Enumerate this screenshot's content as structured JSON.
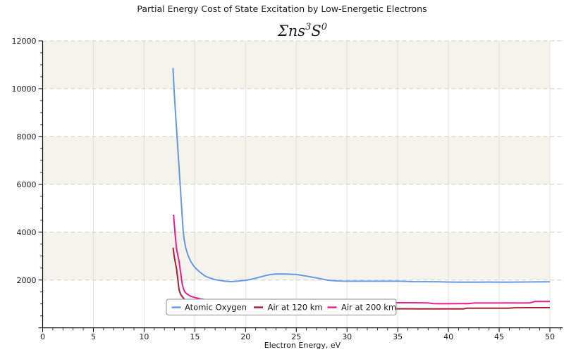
{
  "chart_data": {
    "type": "line",
    "title": "Partial Energy Cost of State Excitation by Low-Energetic Electrons",
    "subtitle_parts": [
      {
        "text": "Σns",
        "sup": false
      },
      {
        "text": "3",
        "sup": true
      },
      {
        "text": "S",
        "sup": false
      },
      {
        "text": "0",
        "sup": true
      }
    ],
    "subtitle_plain": "Σns³S⁰",
    "xlabel": "Electron Energy, eV",
    "ylabel": "",
    "xlim": [
      0,
      51.25
    ],
    "ylim": [
      0,
      12000
    ],
    "x_ticks_major": [
      0,
      5,
      10,
      15,
      20,
      25,
      30,
      35,
      40,
      45,
      50
    ],
    "x_minor_step": 1,
    "y_ticks_major": [
      2000,
      4000,
      6000,
      8000,
      10000,
      12000
    ],
    "y_minor_step": 500,
    "grid": {
      "vertical_style": "solid",
      "horizontal_style": "dashed",
      "vertical_color": "#e0e0e0",
      "horizontal_color": "#cfcfcf"
    },
    "background_bands": {
      "band_height": 2000,
      "colors": [
        "#ffffff",
        "#f4f4ec"
      ]
    },
    "legend": {
      "position": "lower center",
      "border_color": "#8c8c8c",
      "entries": [
        "Atomic Oxygen",
        "Air at 120 km",
        "Air at 200 km"
      ]
    },
    "series": [
      {
        "name": "Atomic Oxygen",
        "color": "#6897e6",
        "points": [
          [
            12.85,
            10870
          ],
          [
            12.95,
            9950
          ],
          [
            13.1,
            8950
          ],
          [
            13.25,
            7970
          ],
          [
            13.4,
            6990
          ],
          [
            13.55,
            6010
          ],
          [
            13.7,
            5030
          ],
          [
            13.85,
            4050
          ],
          [
            13.95,
            3700
          ],
          [
            14.1,
            3350
          ],
          [
            14.3,
            3060
          ],
          [
            14.6,
            2770
          ],
          [
            14.9,
            2580
          ],
          [
            15.2,
            2440
          ],
          [
            15.5,
            2330
          ],
          [
            16,
            2170
          ],
          [
            16.5,
            2080
          ],
          [
            17,
            2015
          ],
          [
            17.5,
            1980
          ],
          [
            18,
            1950
          ],
          [
            18.5,
            1935
          ],
          [
            19,
            1945
          ],
          [
            19.5,
            1965
          ],
          [
            20,
            1990
          ],
          [
            20.5,
            2025
          ],
          [
            21,
            2075
          ],
          [
            21.5,
            2135
          ],
          [
            22,
            2190
          ],
          [
            22.5,
            2230
          ],
          [
            23,
            2250
          ],
          [
            23.5,
            2255
          ],
          [
            24,
            2252
          ],
          [
            24.5,
            2240
          ],
          [
            25,
            2230
          ],
          [
            25.5,
            2200
          ],
          [
            26,
            2162
          ],
          [
            26.5,
            2125
          ],
          [
            27,
            2088
          ],
          [
            27.5,
            2045
          ],
          [
            28,
            2002
          ],
          [
            28.5,
            1978
          ],
          [
            29,
            1962
          ],
          [
            29.5,
            1955
          ],
          [
            30,
            1952
          ],
          [
            31,
            1950
          ],
          [
            32,
            1950
          ],
          [
            33,
            1950
          ],
          [
            34,
            1950
          ],
          [
            35,
            1952
          ],
          [
            36,
            1940
          ],
          [
            36.5,
            1930
          ],
          [
            37,
            1930
          ],
          [
            38,
            1930
          ],
          [
            39,
            1928
          ],
          [
            40,
            1915
          ],
          [
            41,
            1913
          ],
          [
            42,
            1910
          ],
          [
            43,
            1913
          ],
          [
            44,
            1915
          ],
          [
            45,
            1913
          ],
          [
            46,
            1913
          ],
          [
            47,
            1915
          ],
          [
            48,
            1920
          ],
          [
            49,
            1923
          ],
          [
            50,
            1925
          ]
        ]
      },
      {
        "name": "Air at 120 km",
        "color": "#a52232",
        "points": [
          [
            12.85,
            3355
          ],
          [
            13.0,
            2900
          ],
          [
            13.2,
            2470
          ],
          [
            13.45,
            1590
          ],
          [
            13.6,
            1400
          ],
          [
            13.9,
            1230
          ],
          [
            14.2,
            1080
          ],
          [
            14.6,
            960
          ],
          [
            15,
            900
          ],
          [
            15.5,
            865
          ],
          [
            16,
            840
          ],
          [
            17,
            818
          ],
          [
            18,
            808
          ],
          [
            20,
            800
          ],
          [
            22,
            796
          ],
          [
            24,
            793
          ],
          [
            26,
            791
          ],
          [
            28,
            790
          ],
          [
            30,
            790
          ],
          [
            32,
            792
          ],
          [
            34,
            795
          ],
          [
            35,
            798
          ],
          [
            36,
            797
          ],
          [
            37,
            796
          ],
          [
            38,
            796
          ],
          [
            39,
            795
          ],
          [
            40,
            795
          ],
          [
            41.5,
            795
          ],
          [
            41.8,
            822
          ],
          [
            43,
            822
          ],
          [
            44,
            823
          ],
          [
            46,
            825
          ],
          [
            46.5,
            842
          ],
          [
            47,
            843
          ],
          [
            48,
            844
          ],
          [
            49,
            845
          ],
          [
            50,
            845
          ]
        ]
      },
      {
        "name": "Air at 200 km",
        "color": "#ee1c8e",
        "points": [
          [
            12.9,
            4730
          ],
          [
            13.05,
            3950
          ],
          [
            13.2,
            3300
          ],
          [
            13.45,
            2770
          ],
          [
            13.6,
            2300
          ],
          [
            13.75,
            1840
          ],
          [
            13.9,
            1600
          ],
          [
            14.05,
            1480
          ],
          [
            14.3,
            1395
          ],
          [
            14.6,
            1320
          ],
          [
            15,
            1268
          ],
          [
            15.5,
            1215
          ],
          [
            16,
            1180
          ],
          [
            17,
            1130
          ],
          [
            18,
            1100
          ],
          [
            19,
            1083
          ],
          [
            20,
            1070
          ],
          [
            22,
            1055
          ],
          [
            24,
            1050
          ],
          [
            26,
            1048
          ],
          [
            28,
            1048
          ],
          [
            30,
            1048
          ],
          [
            32,
            1048
          ],
          [
            34,
            1048
          ],
          [
            35,
            1050
          ],
          [
            36,
            1050
          ],
          [
            37,
            1048
          ],
          [
            38,
            1046
          ],
          [
            38.5,
            1012
          ],
          [
            39,
            1010
          ],
          [
            40,
            1010
          ],
          [
            41,
            1012
          ],
          [
            42,
            1014
          ],
          [
            42.5,
            1040
          ],
          [
            43,
            1040
          ],
          [
            44,
            1040
          ],
          [
            45,
            1040
          ],
          [
            46,
            1042
          ],
          [
            47,
            1040
          ],
          [
            48,
            1042
          ],
          [
            48.5,
            1100
          ],
          [
            49,
            1100
          ],
          [
            50,
            1100
          ]
        ]
      }
    ]
  }
}
